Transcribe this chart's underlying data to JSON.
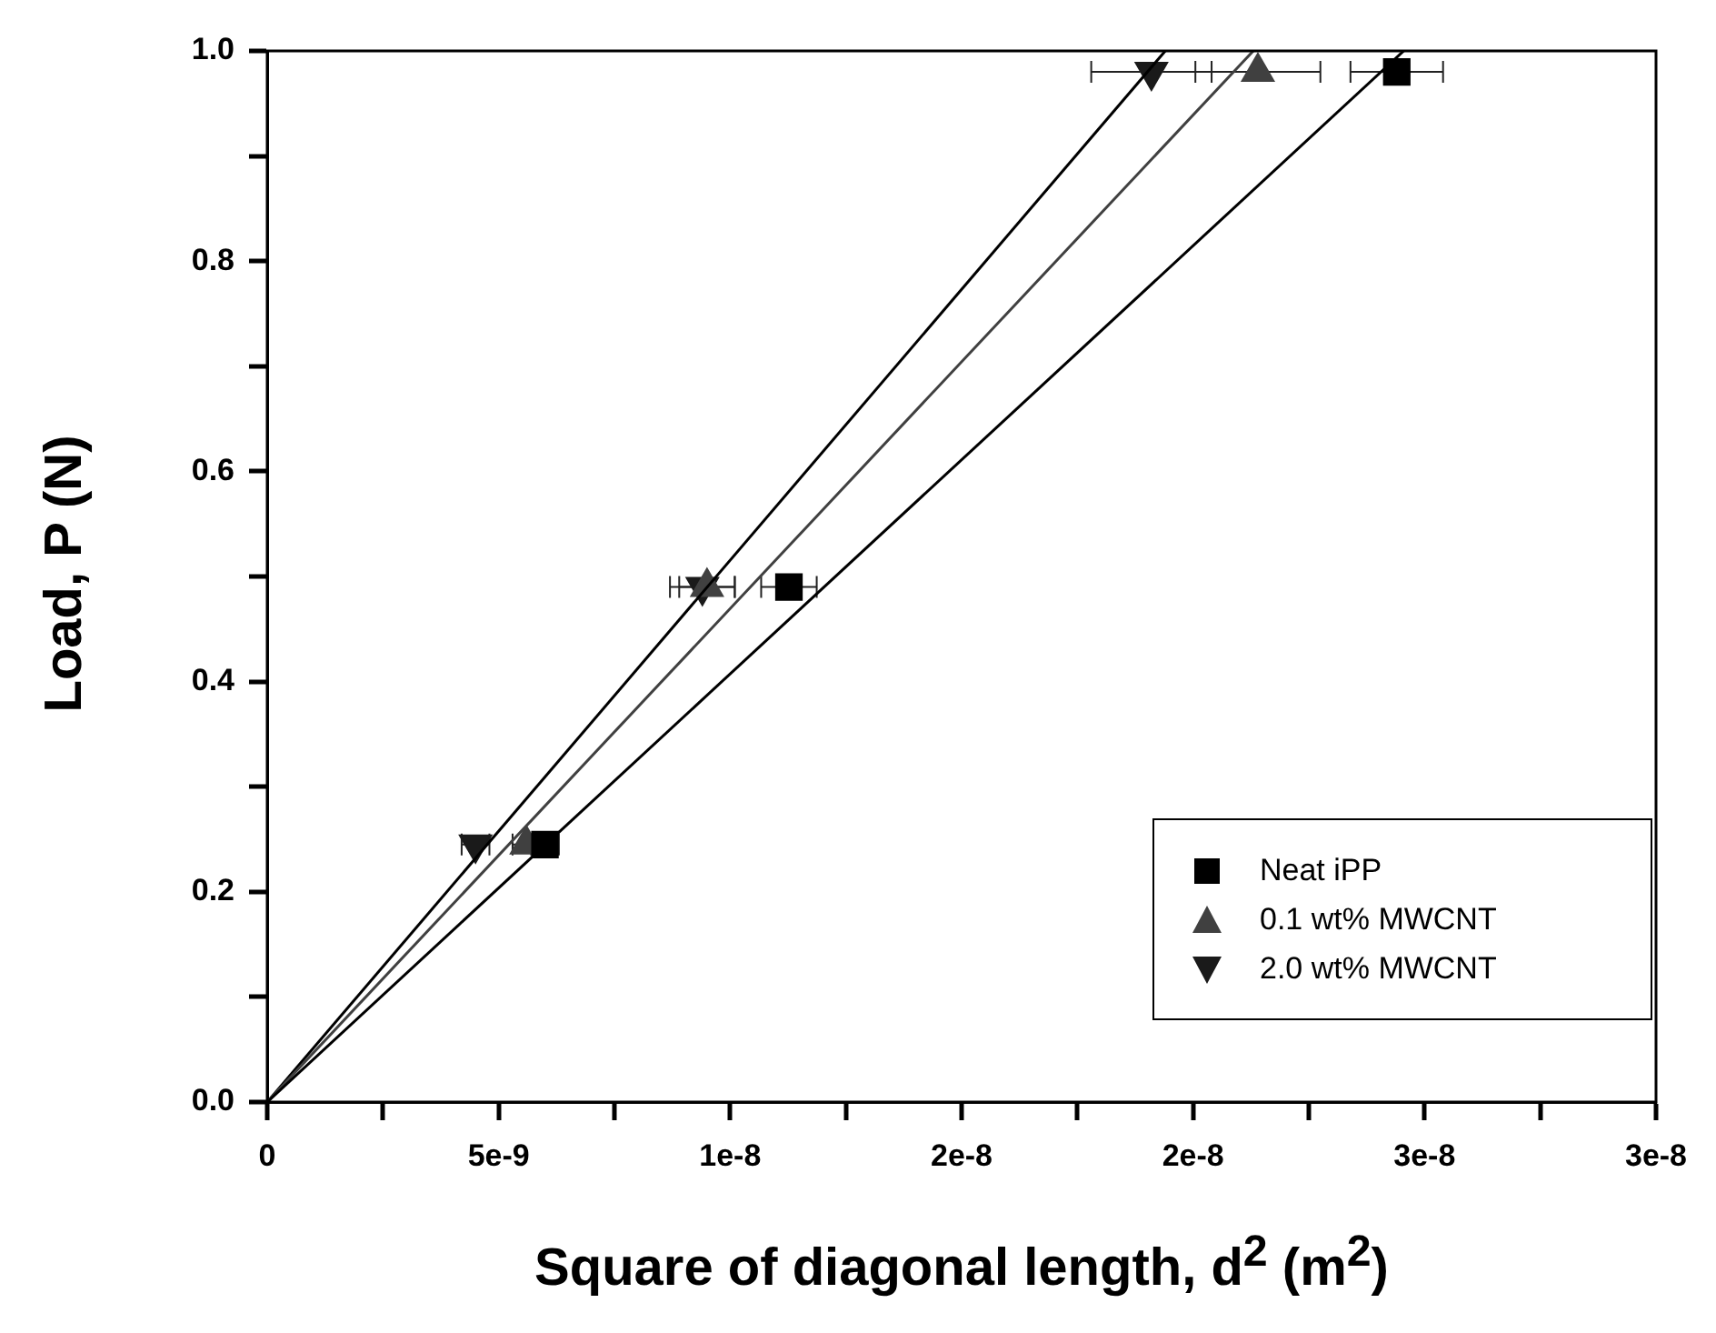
{
  "chart_data": {
    "type": "scatter",
    "xlabel": "Square of diagonal length, d$^{2}$ (m$^{2}$)",
    "ylabel": "Load, P (N)",
    "xlim": [
      0,
      3e-08
    ],
    "xticks": [
      0,
      {
        "value": 2.5e-09,
        "label": null
      },
      {
        "value": 5e-09,
        "label": "5e-9"
      },
      {
        "value": 7.5e-09,
        "label": null
      },
      {
        "value": 1e-08,
        "label": "1e-8"
      },
      {
        "value": 1.25e-08,
        "label": null
      },
      {
        "value": 1.5e-08,
        "label": "2e-8"
      },
      {
        "value": 1.75e-08,
        "label": null
      },
      {
        "value": 2e-08,
        "label": "2e-8"
      },
      {
        "value": 2.25e-08,
        "label": null
      },
      {
        "value": 2.5e-08,
        "label": "3e-8"
      },
      {
        "value": 2.75e-08,
        "label": null
      },
      {
        "value": 3e-08,
        "label": "3e-8"
      }
    ],
    "ylim": [
      0,
      1
    ],
    "yticks": [
      {
        "value": 0,
        "label": "0.0"
      },
      {
        "value": 0.1,
        "label": null
      },
      0.2,
      {
        "value": 0.3,
        "label": null
      },
      0.4,
      {
        "value": 0.5,
        "label": null
      },
      0.6,
      {
        "value": 0.7,
        "label": null
      },
      0.8,
      {
        "value": 0.9,
        "label": null
      },
      {
        "value": 1,
        "label": "1.0"
      }
    ],
    "grid": false,
    "legend": "bottom right",
    "series": [
      {
        "type": "line",
        "color": "#000000",
        "x": [
          0,
          2.455e-08
        ],
        "values": [
          0,
          1
        ],
        "marker": "none"
      },
      {
        "type": "line",
        "color": "#404040",
        "x": [
          0,
          2.13e-08
        ],
        "values": [
          0,
          1
        ],
        "marker": "none"
      },
      {
        "type": "line",
        "color": "#000000",
        "x": [
          0,
          1.94e-08
        ],
        "values": [
          0,
          1
        ],
        "marker": "none"
      },
      {
        "name": "Neat iPP",
        "color": "#000000",
        "marker": "square",
        "x": [
          6e-09,
          1.127e-08,
          2.44e-08
        ],
        "values": [
          0.245,
          0.49,
          0.98
        ],
        "xerrors": [
          3e-10,
          6e-10,
          1e-09
        ]
      },
      {
        "name": "0.1 wt% MWCNT",
        "color": "#404040",
        "marker": "triangle",
        "x": [
          5.6e-09,
          9.5e-09,
          2.14e-08
        ],
        "values": [
          0.245,
          0.49,
          0.98
        ],
        "xerrors": [
          3e-10,
          6e-10,
          1.35e-09
        ]
      },
      {
        "name": "2.0 wt% MWCNT",
        "color": "#1a1a1a",
        "marker": "triangle-down",
        "x": [
          4.5e-09,
          9.4e-09,
          1.91e-08
        ],
        "values": [
          0.245,
          0.49,
          0.98
        ],
        "xerrors": [
          3e-10,
          7e-10,
          1.3e-09
        ]
      }
    ]
  }
}
